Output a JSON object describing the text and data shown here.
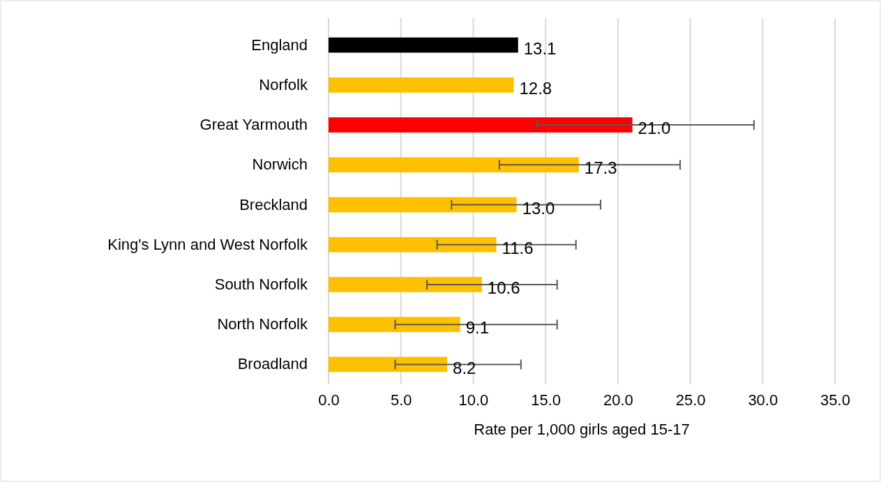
{
  "chart_data": {
    "type": "bar",
    "orientation": "horizontal",
    "xlabel": "Rate per 1,000 girls aged 15-17",
    "categories": [
      "England",
      "Norfolk",
      "Great Yarmouth",
      "Norwich",
      "Breckland",
      "King's Lynn and West Norfolk",
      "South Norfolk",
      "North Norfolk",
      "Broadland"
    ],
    "values": [
      13.1,
      12.8,
      21.0,
      17.3,
      13.0,
      11.6,
      10.6,
      9.1,
      8.2
    ],
    "value_labels": [
      "13.1",
      "12.8",
      "21.0",
      "17.3",
      "13.0",
      "11.6",
      "10.6",
      "9.1",
      "8.2"
    ],
    "colors": [
      "#000000",
      "#ffc000",
      "#ff0000",
      "#ffc000",
      "#ffc000",
      "#ffc000",
      "#ffc000",
      "#ffc000",
      "#ffc000"
    ],
    "errors": [
      null,
      null,
      [
        14.4,
        29.4
      ],
      [
        11.8,
        24.3
      ],
      [
        8.5,
        18.8
      ],
      [
        7.5,
        17.1
      ],
      [
        6.8,
        15.8
      ],
      [
        4.6,
        15.8
      ],
      [
        4.6,
        13.3
      ]
    ],
    "xlim": [
      0,
      35
    ],
    "xticks": [
      {
        "value": 0,
        "label": "0.0"
      },
      {
        "value": 5,
        "label": "5.0"
      },
      {
        "value": 10,
        "label": "10.0"
      },
      {
        "value": 15,
        "label": "15.0"
      },
      {
        "value": 20,
        "label": "20.0"
      },
      {
        "value": 25,
        "label": "25.0"
      },
      {
        "value": 30,
        "label": "30.0"
      },
      {
        "value": 35,
        "label": "35.0"
      }
    ],
    "grid": "x"
  }
}
